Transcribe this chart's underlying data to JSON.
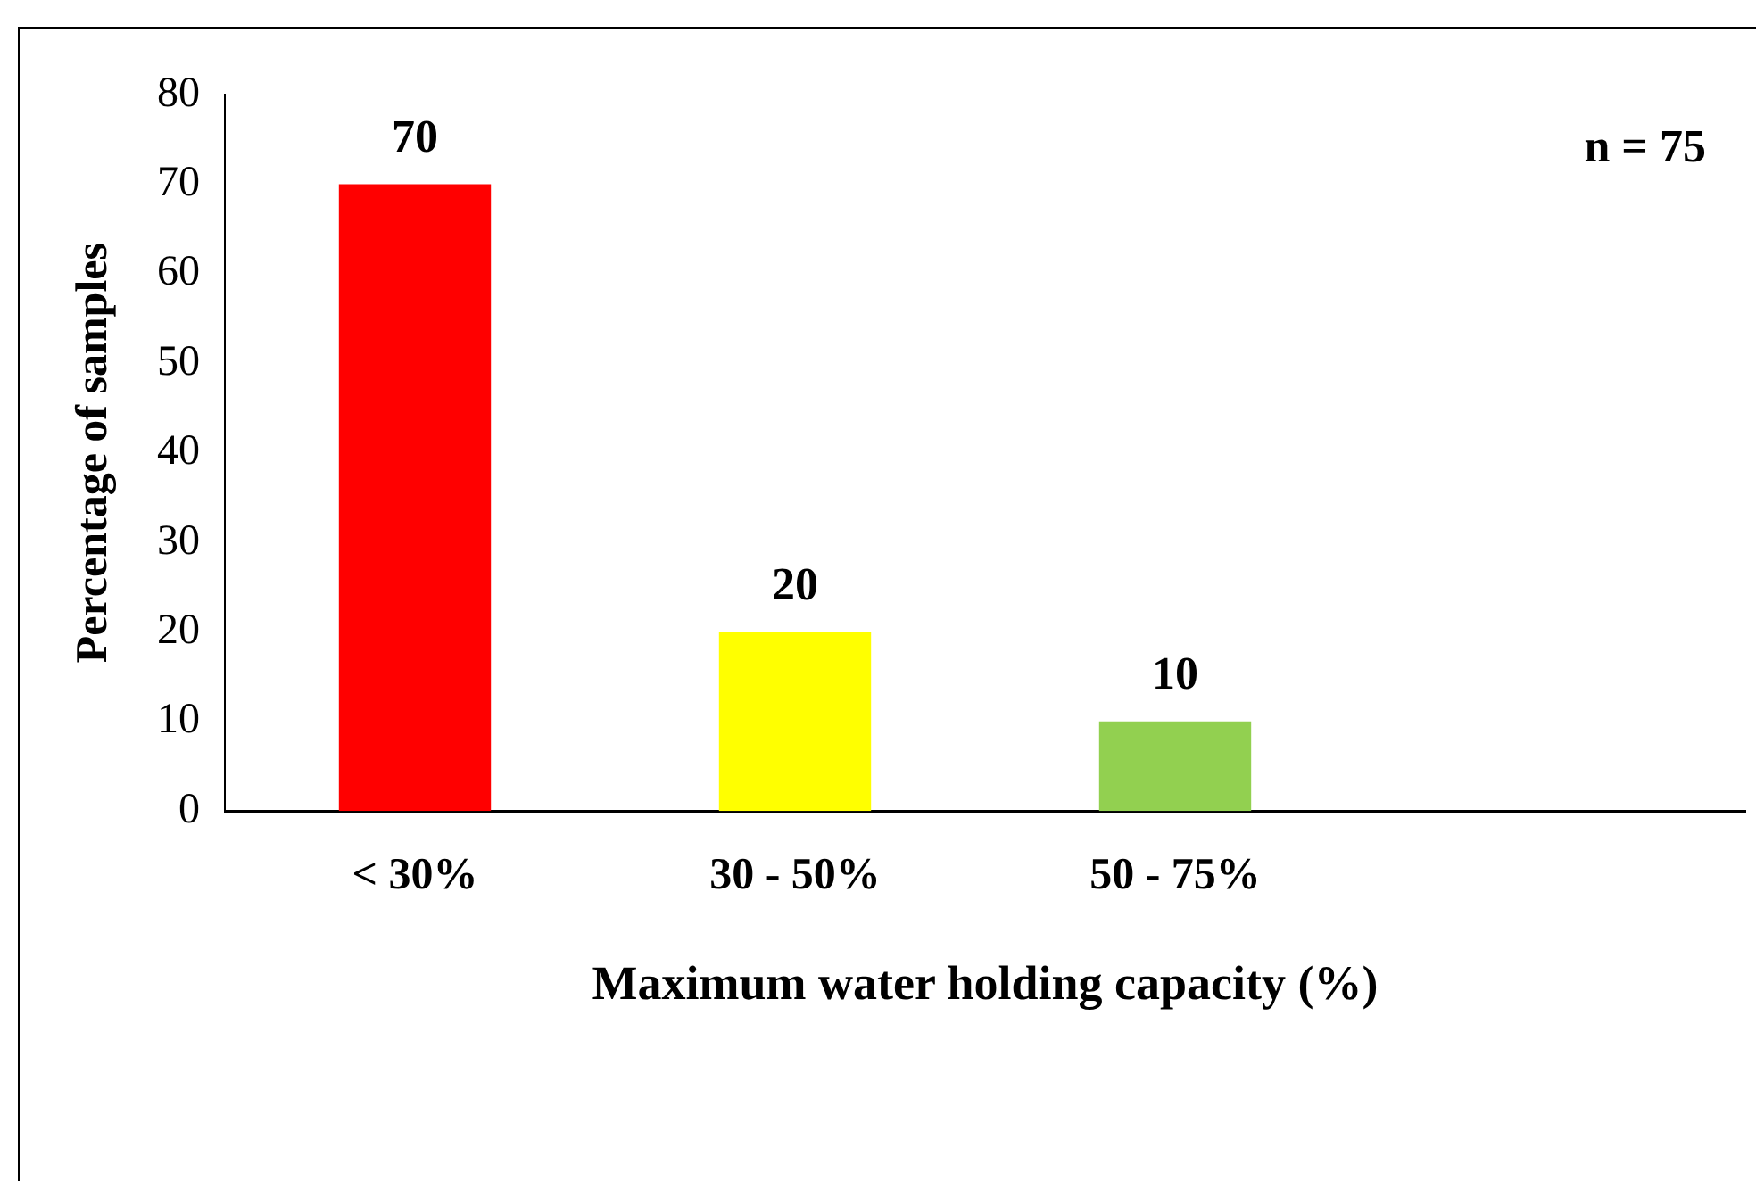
{
  "chart_data": {
    "type": "bar",
    "ylabel": "Percentage of samples",
    "xlabel": "Maximum water holding capacity (%)",
    "categories": [
      "< 30%",
      "30 - 50%",
      "50 - 75%",
      null
    ],
    "values": [
      70,
      20,
      10,
      null
    ],
    "colors": [
      "#ff0000",
      "#ffff00",
      "#92d050",
      null
    ],
    "ylim": [
      0,
      80
    ],
    "yticks": [
      0,
      10,
      20,
      30,
      40,
      50,
      60,
      70,
      80
    ],
    "grid": false,
    "legend": false,
    "data_labels": true,
    "annotations": [
      "n = 75"
    ]
  }
}
